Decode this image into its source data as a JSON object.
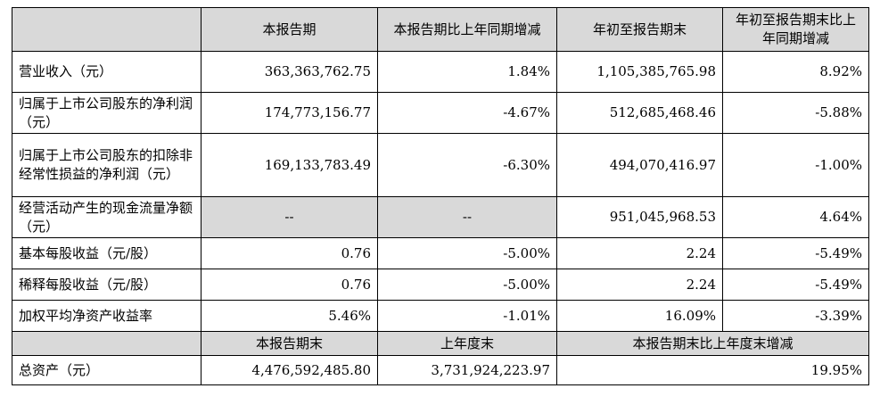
{
  "header": {
    "col1": "本报告期",
    "col2": "本报告期比上年同期增减",
    "col3": "年初至报告期末",
    "col4": "年初至报告期末比上年同期增减"
  },
  "rows": [
    {
      "label": "营业收入（元）",
      "v1": "363,363,762.75",
      "v2": "1.84%",
      "v3": "1,105,385,765.98",
      "v4": "8.92%"
    },
    {
      "label": "归属于上市公司股东的净利润（元）",
      "v1": "174,773,156.77",
      "v2": "-4.67%",
      "v3": "512,685,468.46",
      "v4": "-5.88%"
    },
    {
      "label": "归属于上市公司股东的扣除非经常性损益的净利润（元）",
      "v1": "169,133,783.49",
      "v2": "-6.30%",
      "v3": "494,070,416.97",
      "v4": "-1.00%"
    },
    {
      "label": "经营活动产生的现金流量净额（元）",
      "v1": "--",
      "v2": "--",
      "v3": "951,045,968.53",
      "v4": "4.64%"
    },
    {
      "label": "基本每股收益（元/股）",
      "v1": "0.76",
      "v2": "-5.00%",
      "v3": "2.24",
      "v4": "-5.49%"
    },
    {
      "label": "稀释每股收益（元/股）",
      "v1": "0.76",
      "v2": "-5.00%",
      "v3": "2.24",
      "v4": "-5.49%"
    },
    {
      "label": "加权平均净资产收益率",
      "v1": "5.46%",
      "v2": "-1.01%",
      "v3": "16.09%",
      "v4": "-3.39%"
    }
  ],
  "header2": {
    "col1": "本报告期末",
    "col2": "上年度末",
    "col3": "本报告期末比上年度末增减"
  },
  "assets_row": {
    "label": "总资产（元）",
    "v1": "4,476,592,485.80",
    "v2": "3,731,924,223.97",
    "v3": "19.95%"
  },
  "colors": {
    "header_bg": "#d9d9d9",
    "border": "#000000"
  }
}
